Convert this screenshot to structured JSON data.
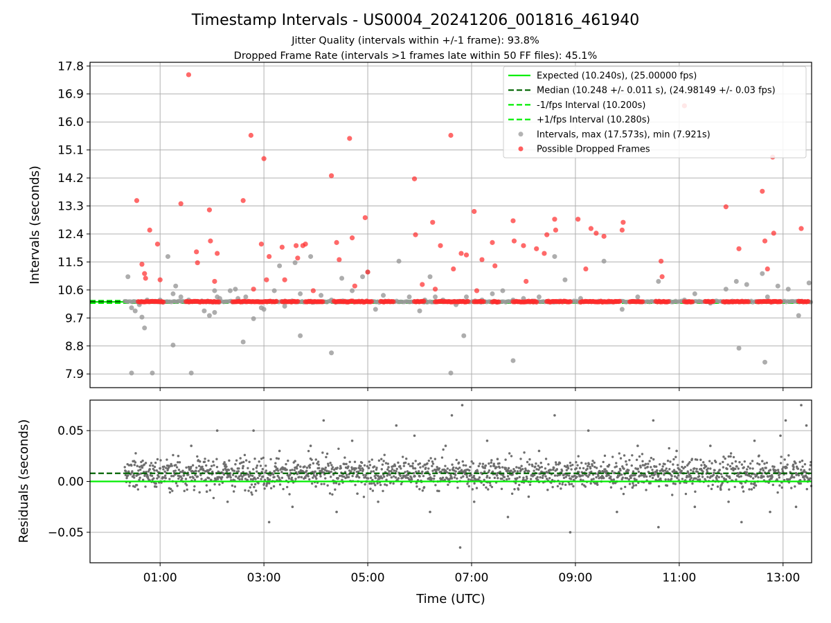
{
  "title": "Timestamp Intervals - US0004_20241206_001816_461940",
  "subtitle_lines": [
    "Jitter Quality (intervals within +/-1 frame): 93.8%",
    "Dropped Frame Rate (intervals >1 frames late within 50 FF files): 45.1%"
  ],
  "colors": {
    "expected": "#00ee00",
    "median": "#006400",
    "interval_lines": "#00ee00",
    "intervals": "#999999",
    "dropped": "#ff2a2a",
    "residuals": "#6e6e6e",
    "grid": "#b0b0b0"
  },
  "chart_data": [
    {
      "type": "scatter",
      "panel": "top",
      "ylabel": "Intervals (seconds)",
      "xlabel": "",
      "xlim_hours": [
        -0.35,
        13.55
      ],
      "ylim": [
        7.48,
        17.95
      ],
      "yticks": [
        "7.9",
        "8.8",
        "9.7",
        "10.6",
        "11.5",
        "12.4",
        "13.3",
        "14.2",
        "15.1",
        "16.0",
        "16.9",
        "17.8"
      ],
      "ytick_values": [
        7.921,
        8.822,
        9.723,
        10.624,
        11.525,
        12.426,
        13.327,
        14.228,
        15.129,
        16.03,
        16.931,
        17.832
      ],
      "grid": true,
      "legend_position": "top-right",
      "lines": {
        "expected": 10.24,
        "median": 10.248,
        "minus_interval": 10.2,
        "plus_interval": 10.28
      },
      "legend": [
        {
          "label": "Expected (10.240s), (25.00000 fps)",
          "kind": "line-solid",
          "color_key": "expected"
        },
        {
          "label": "Median (10.248 +/- 0.011 s), (24.98149 +/- 0.03 fps)",
          "kind": "line-dashed",
          "color_key": "median"
        },
        {
          "label": "-1/fps Interval (10.200s)",
          "kind": "line-dashed",
          "color_key": "interval_lines"
        },
        {
          "label": "+1/fps Interval (10.280s)",
          "kind": "line-dashed",
          "color_key": "interval_lines"
        },
        {
          "label": "Intervals, max (17.573s), min (7.921s)",
          "kind": "dot",
          "color_key": "intervals"
        },
        {
          "label": "Possible Dropped Frames",
          "kind": "dot",
          "color_key": "dropped"
        }
      ],
      "series": [
        {
          "name": "Intervals, max (17.573s), min (7.921s)",
          "x_hours": [
            0.38,
            0.45,
            0.52,
            0.6,
            0.65,
            0.7,
            0.75,
            0.82,
            0.9,
            1.0,
            1.15,
            1.25,
            1.3,
            1.4,
            1.55,
            1.7,
            1.85,
            1.95,
            2.05,
            2.1,
            2.15,
            2.35,
            2.45,
            2.5,
            2.65,
            2.8,
            2.95,
            3.0,
            3.2,
            3.3,
            3.4,
            3.6,
            3.7,
            3.9,
            4.1,
            4.3,
            4.5,
            4.7,
            4.9,
            5.0,
            5.15,
            5.3,
            5.6,
            5.8,
            6.0,
            6.1,
            6.2,
            6.3,
            6.45,
            6.55,
            6.7,
            6.9,
            7.2,
            7.4,
            7.6,
            7.8,
            8.0,
            8.3,
            8.6,
            8.8,
            9.1,
            9.55,
            9.9,
            10.2,
            10.6,
            10.8,
            11.1,
            11.3,
            11.6,
            11.9,
            12.1,
            12.3,
            12.6,
            12.7,
            12.9,
            13.1,
            13.3,
            13.5,
            0.45,
            0.85,
            1.6,
            1.25,
            2.05,
            3.7,
            4.3,
            6.6,
            6.85,
            7.8,
            12.15,
            12.65,
            2.6
          ],
          "y": [
            11.05,
            10.05,
            9.95,
            10.15,
            9.75,
            9.4,
            10.3,
            10.25,
            10.25,
            10.3,
            11.7,
            10.5,
            10.75,
            10.4,
            10.3,
            10.25,
            9.95,
            9.8,
            10.6,
            10.4,
            10.35,
            10.6,
            10.65,
            10.35,
            10.4,
            9.7,
            10.05,
            10.0,
            10.6,
            11.4,
            10.1,
            11.5,
            10.5,
            11.7,
            10.45,
            10.3,
            11.0,
            10.6,
            11.05,
            11.2,
            10.0,
            10.45,
            11.55,
            10.4,
            9.95,
            10.3,
            11.05,
            10.4,
            10.3,
            10.25,
            10.15,
            10.4,
            10.3,
            10.5,
            10.6,
            10.3,
            10.35,
            10.4,
            11.7,
            10.95,
            10.35,
            11.55,
            10.0,
            10.4,
            10.9,
            10.25,
            10.3,
            10.5,
            10.2,
            10.65,
            10.9,
            10.8,
            11.15,
            10.4,
            10.75,
            10.65,
            9.8,
            10.85,
            7.95,
            7.95,
            7.95,
            8.85,
            9.9,
            9.15,
            8.6,
            7.95,
            9.15,
            8.35,
            8.75,
            8.3,
            8.95
          ]
        },
        {
          "name": "Possible Dropped Frames",
          "x_hours": [
            0.55,
            0.65,
            0.7,
            0.72,
            0.8,
            0.95,
            1.0,
            1.55,
            1.4,
            1.7,
            1.72,
            1.95,
            1.97,
            2.05,
            2.1,
            2.6,
            2.75,
            2.8,
            2.95,
            3.0,
            3.05,
            3.1,
            3.35,
            3.4,
            3.62,
            3.65,
            3.75,
            3.8,
            3.95,
            4.3,
            4.4,
            4.45,
            4.65,
            4.7,
            4.75,
            4.95,
            5.0,
            5.9,
            5.92,
            6.05,
            6.25,
            6.3,
            6.4,
            6.6,
            6.65,
            6.8,
            6.9,
            7.05,
            7.1,
            7.2,
            7.4,
            7.45,
            7.8,
            7.82,
            8.0,
            8.05,
            8.25,
            8.4,
            8.45,
            8.6,
            8.62,
            9.05,
            9.2,
            9.3,
            9.4,
            9.55,
            9.9,
            9.92,
            10.65,
            10.67,
            11.1,
            11.9,
            12.15,
            12.6,
            12.65,
            12.7,
            12.8,
            12.82,
            13.35
          ],
          "y": [
            13.5,
            11.45,
            11.15,
            11.0,
            12.55,
            12.1,
            10.95,
            17.55,
            13.4,
            11.85,
            11.5,
            13.2,
            12.2,
            10.9,
            11.8,
            13.5,
            15.6,
            10.65,
            12.1,
            14.85,
            10.95,
            11.7,
            12.0,
            10.95,
            12.05,
            11.65,
            12.05,
            12.1,
            10.6,
            14.3,
            12.15,
            11.6,
            15.5,
            12.3,
            10.75,
            12.95,
            11.2,
            14.2,
            12.4,
            10.8,
            12.8,
            10.65,
            12.05,
            15.6,
            11.3,
            11.8,
            11.75,
            13.15,
            10.6,
            11.6,
            12.15,
            11.4,
            12.85,
            12.2,
            12.05,
            10.9,
            11.95,
            11.8,
            12.4,
            12.9,
            12.55,
            12.9,
            11.3,
            12.6,
            12.45,
            12.35,
            12.55,
            12.8,
            11.55,
            11.05,
            16.55,
            13.3,
            11.95,
            13.8,
            12.2,
            11.3,
            14.9,
            12.45,
            12.6
          ]
        }
      ]
    },
    {
      "type": "scatter",
      "panel": "bottom",
      "ylabel": "Residuals (seconds)",
      "xlabel": "Time (UTC)",
      "xlim_hours": [
        -0.35,
        13.55
      ],
      "ylim": [
        -0.08,
        0.08
      ],
      "yticks": [
        "−0.05",
        "0.00",
        "0.05"
      ],
      "ytick_values": [
        -0.05,
        0.0,
        0.05
      ],
      "xticks": [
        "01:00",
        "03:00",
        "05:00",
        "07:00",
        "09:00",
        "11:00",
        "13:00"
      ],
      "xtick_hours": [
        1,
        3,
        5,
        7,
        9,
        11,
        13
      ],
      "grid": true,
      "lines": {
        "expected": 0.0,
        "median": 0.008
      },
      "series": [
        {
          "name": "",
          "x_hours": [
            0.5,
            0.9,
            1.35,
            1.6,
            2.1,
            2.3,
            2.8,
            3.1,
            3.3,
            3.55,
            3.9,
            4.15,
            4.4,
            4.7,
            5.2,
            5.55,
            5.9,
            6.2,
            6.5,
            6.62,
            6.78,
            6.82,
            7.05,
            7.3,
            7.7,
            8.3,
            8.6,
            8.9,
            9.25,
            9.8,
            10.2,
            10.5,
            10.6,
            10.95,
            11.3,
            11.6,
            11.95,
            12.2,
            12.45,
            12.75,
            12.95,
            13.05,
            13.25,
            13.35,
            13.45,
            0.8,
            1.9,
            2.6,
            3.6,
            4.8,
            5.7,
            6.0,
            7.5,
            8.1,
            9.6,
            10.3,
            11.8,
            12.6,
            13.2,
            3.2,
            4.0,
            5.4,
            6.4,
            8.7,
            10.1,
            11.4,
            12.3,
            13.4
          ],
          "y": [
            0.02,
            -0.005,
            0.025,
            0.035,
            0.05,
            -0.02,
            0.05,
            -0.04,
            0.03,
            -0.025,
            0.035,
            0.06,
            -0.03,
            0.04,
            -0.02,
            0.055,
            0.045,
            -0.03,
            0.035,
            0.065,
            -0.065,
            0.075,
            -0.02,
            0.04,
            -0.035,
            0.03,
            0.065,
            -0.05,
            0.05,
            -0.03,
            0.035,
            0.06,
            -0.045,
            0.03,
            -0.025,
            0.035,
            -0.02,
            -0.04,
            0.04,
            -0.03,
            0.045,
            0.06,
            -0.025,
            0.075,
            0.055,
            0.012,
            -0.01,
            0.015,
            0.02,
            -0.012,
            0.018,
            0.005,
            0.022,
            -0.015,
            0.01,
            0.016,
            -0.008,
            0.02,
            0.012,
            0.01,
            -0.005,
            0.014,
            0.003,
            0.018,
            -0.006,
            0.012,
            0.009,
            0.005
          ]
        }
      ]
    }
  ]
}
